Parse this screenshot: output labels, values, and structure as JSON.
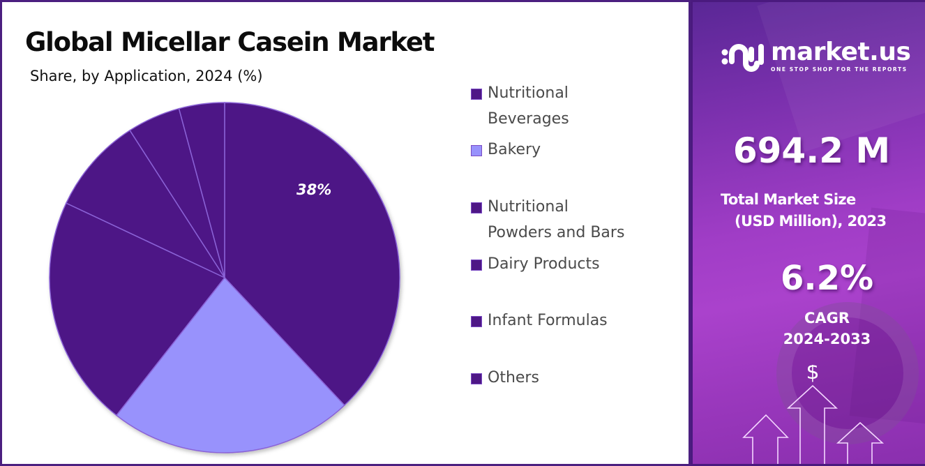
{
  "title": "Global Micellar Casein Market",
  "subtitle": "Share, by Application, 2024 (%)",
  "pie_label": "38%",
  "legend": [
    {
      "label": "Nutritional\nBeverages",
      "color": "#4e1786"
    },
    {
      "label": "Bakery",
      "color": "#9892fc"
    },
    {
      "label": "Nutritional\nPowders and Bars",
      "color": "#4e1786"
    },
    {
      "label": "Dairy Products",
      "color": "#4e1786"
    },
    {
      "label": "Infant Formulas",
      "color": "#4e1786"
    },
    {
      "label": "Others",
      "color": "#4e1786"
    }
  ],
  "brand": {
    "name": "market.us",
    "tagline": "ONE STOP SHOP FOR THE REPORTS"
  },
  "stats": {
    "market_size": "694.2 M",
    "market_size_label_line1": "Total Market Size",
    "market_size_label_line2": "(USD Million), 2023",
    "cagr": "6.2%",
    "cagr_label": "CAGR",
    "cagr_period": "2024-2033"
  },
  "icons": {
    "dollar": "$"
  },
  "colors": {
    "dark_slice": "#4e1786",
    "light_slice": "#9892fc",
    "slice_border": "#8a62d6",
    "frame": "#4b1f80"
  },
  "chart_data": {
    "type": "pie",
    "title": "Global Micellar Casein Market",
    "subtitle": "Share, by Application, 2024 (%)",
    "categories": [
      "Nutritional Beverages",
      "Bakery",
      "Nutritional Powders and Bars",
      "Dairy Products",
      "Infant Formulas",
      "Others"
    ],
    "values": [
      38.0,
      22.6,
      21.4,
      8.9,
      4.9,
      4.2
    ],
    "labeled_values": {
      "Nutritional Beverages": "38%"
    },
    "start_angle": "12 o'clock, clockwise",
    "legend_position": "right"
  }
}
